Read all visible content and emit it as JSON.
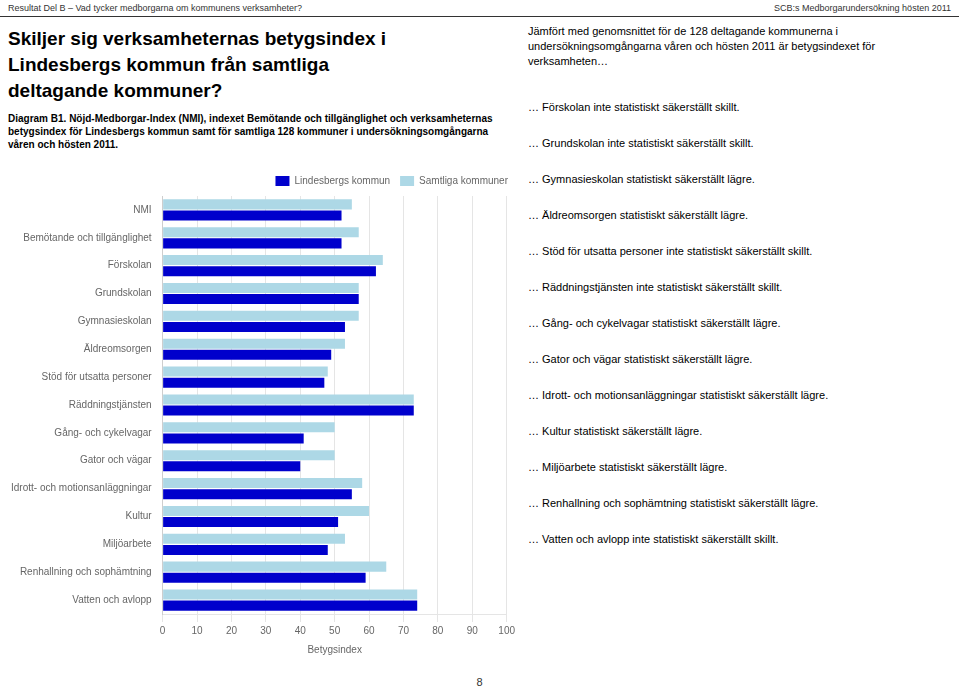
{
  "chart_data": {
    "type": "bar",
    "orientation": "horizontal",
    "title": [
      "Skiljer sig verksamheternas betygsindex i",
      "Lindesbergs kommun från samtliga",
      "deltagande kommuner?"
    ],
    "subtitle": "Diagram B1. Nöjd-Medborgar-Index (NMI), indexet Bemötande och tillgänglighet och verksamheternas betygsindex för Lindesbergs kommun samt för samtliga 128 kommuner i undersökningsomgångarna våren och hösten 2011.",
    "annotations": [
      "Resultat Del B – Vad tycker medborgarna om kommunens verksamheter?",
      "SCB:s Medborgarundersökning hösten 2011",
      "Jämfört med genomsnittet för de 128 deltagande kommunerna i undersökningsomgångarna våren och hösten 2011 är betygsindexet för verksamheten…",
      "… Förskolan inte statistiskt säkerställt skillt.",
      "… Grundskolan inte statistiskt säkerställt skillt.",
      "… Gymnasieskolan statistiskt säkerställt lägre.",
      "… Äldreomsorgen statistiskt säkerställt lägre.",
      "… Stöd för utsatta personer inte statistiskt säkerställt skillt.",
      "… Räddningstjänsten inte statistiskt säkerställt skillt.",
      "… Gång- och cykelvagar statistiskt säkerställt lägre.",
      "… Gator och vägar statistiskt säkerställt lägre.",
      "… Idrott- och motionsanläggningar statistiskt säkerställt lägre.",
      "… Kultur statistiskt säkerställt lägre.",
      "… Miljöarbete statistiskt säkerställt lägre.",
      "… Renhallning och sophämtning statistiskt säkerställt lägre.",
      "… Vatten och avlopp inte statistiskt säkerställt skillt.",
      "8"
    ],
    "x_label": "Betygsindex",
    "categories": [
      "NMI",
      "Bemötande och tillgänglighet",
      "Förskolan",
      "Grundskolan",
      "Gymnasieskolan",
      "Äldreomsorgen",
      "Stöd för utsatta personer",
      "Räddningstjänsten",
      "Gång- och cykelvagar",
      "Gator och vägar",
      "Idrott- och motionsanläggningar",
      "Kultur",
      "Miljöarbete",
      "Renhallning och sophämtning",
      "Vatten och avlopp"
    ],
    "series": [
      {
        "name": "Samtliga kommuner",
        "color": "#ADD8E6",
        "values": [
          55,
          57,
          64,
          57,
          57,
          53,
          48,
          73,
          50,
          50,
          58,
          60,
          53,
          65,
          74
        ]
      },
      {
        "name": "Lindesbergs kommun",
        "color": "#0000CC",
        "values": [
          52,
          52,
          62,
          57,
          53,
          49,
          47,
          73,
          41,
          40,
          55,
          51,
          48,
          59,
          74
        ]
      }
    ],
    "xlim": [
      0,
      100
    ],
    "xticks": [
      0,
      10,
      20,
      30,
      40,
      50,
      60,
      70,
      80,
      90,
      100
    ],
    "grid": true,
    "legend": "upper right"
  }
}
